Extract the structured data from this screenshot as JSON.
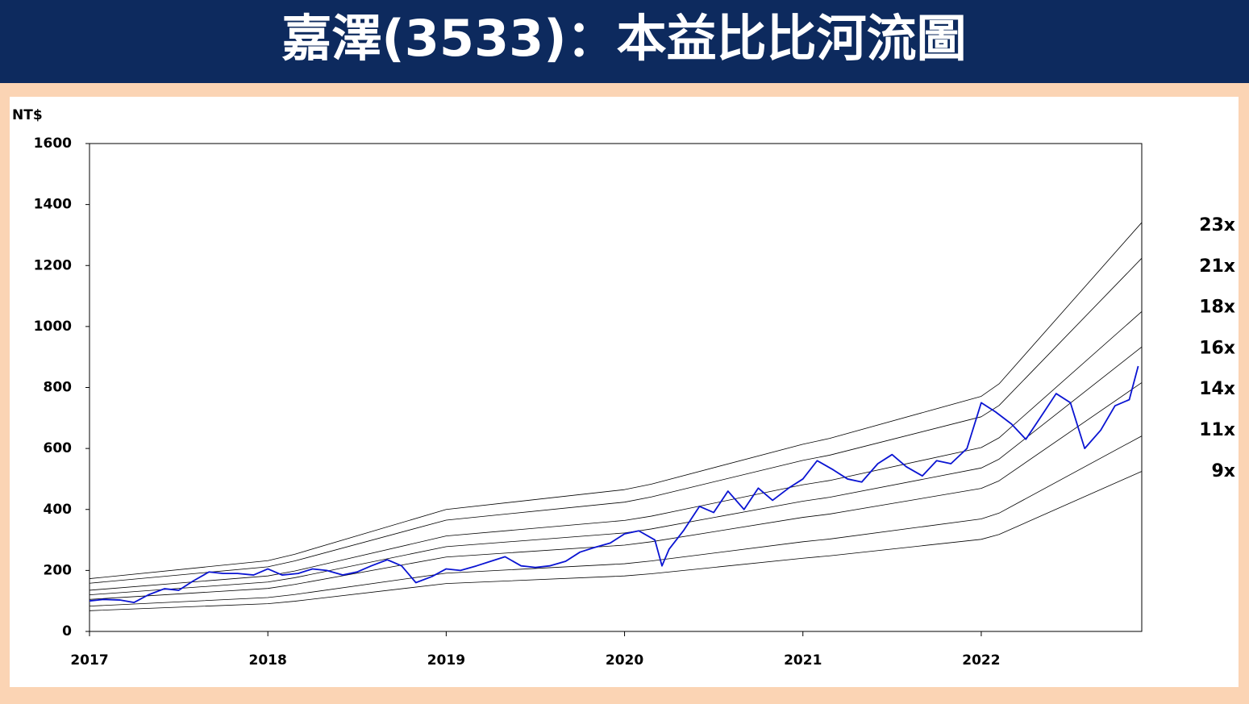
{
  "chart_data": {
    "type": "line",
    "title": "嘉澤(3533)：本益比比河流圖",
    "y_label": "NT$",
    "xlim": [
      2017,
      2022.9
    ],
    "xticks": [
      2017,
      2018,
      2019,
      2020,
      2021,
      2022
    ],
    "ylim": [
      0,
      1600
    ],
    "yticks": [
      0,
      200,
      400,
      600,
      800,
      1000,
      1200,
      1400,
      1600
    ],
    "series": [
      {
        "name": "23x",
        "color": "#000000",
        "x": [
          2017,
          2018,
          2018.15,
          2019,
          2020,
          2020.15,
          2021,
          2021.15,
          2022,
          2022.1,
          2022.9
        ],
        "values": [
          173,
          232,
          253,
          400,
          465,
          483,
          614,
          633,
          771,
          812,
          1341
        ]
      },
      {
        "name": "21x",
        "color": "#000000",
        "x": [
          2017,
          2018,
          2018.15,
          2019,
          2020,
          2020.15,
          2021,
          2021.15,
          2022,
          2022.1,
          2022.9
        ],
        "values": [
          158,
          212,
          231,
          365,
          424,
          441,
          561,
          578,
          704,
          741,
          1224
        ]
      },
      {
        "name": "18x",
        "color": "#000000",
        "x": [
          2017,
          2018,
          2018.15,
          2019,
          2020,
          2020.15,
          2021,
          2021.15,
          2022,
          2022.1,
          2022.9
        ],
        "values": [
          135,
          182,
          198,
          313,
          364,
          378,
          481,
          495,
          603,
          635,
          1049
        ]
      },
      {
        "name": "16x",
        "color": "#000000",
        "x": [
          2017,
          2018,
          2018.15,
          2019,
          2020,
          2020.15,
          2021,
          2021.15,
          2022,
          2022.1,
          2022.9
        ],
        "values": [
          120,
          162,
          176,
          278,
          323,
          336,
          427,
          440,
          536,
          565,
          933
        ]
      },
      {
        "name": "14x",
        "color": "#000000",
        "x": [
          2017,
          2018,
          2018.15,
          2019,
          2020,
          2020.15,
          2021,
          2021.15,
          2022,
          2022.1,
          2022.9
        ],
        "values": [
          105,
          141,
          154,
          244,
          283,
          294,
          374,
          385,
          469,
          494,
          816
        ]
      },
      {
        "name": "11x",
        "color": "#000000",
        "x": [
          2017,
          2018,
          2018.15,
          2019,
          2020,
          2020.15,
          2021,
          2021.15,
          2022,
          2022.1,
          2022.9
        ],
        "values": [
          83,
          111,
          121,
          191,
          222,
          231,
          294,
          303,
          369,
          388,
          641
        ]
      },
      {
        "name": "9x",
        "color": "#000000",
        "x": [
          2017,
          2018,
          2018.15,
          2019,
          2020,
          2020.15,
          2021,
          2021.15,
          2022,
          2022.1,
          2022.9
        ],
        "values": [
          68,
          91,
          99,
          157,
          182,
          189,
          240,
          248,
          302,
          318,
          525
        ]
      },
      {
        "color": "#0a14d2",
        "x": [
          2017,
          2017.08,
          2017.17,
          2017.25,
          2017.33,
          2017.42,
          2017.5,
          2017.58,
          2017.67,
          2017.75,
          2017.83,
          2017.92,
          2018,
          2018.08,
          2018.17,
          2018.25,
          2018.33,
          2018.42,
          2018.5,
          2018.58,
          2018.67,
          2018.75,
          2018.83,
          2018.92,
          2019,
          2019.08,
          2019.17,
          2019.25,
          2019.33,
          2019.42,
          2019.5,
          2019.58,
          2019.67,
          2019.75,
          2019.83,
          2019.92,
          2020,
          2020.08,
          2020.17,
          2020.21,
          2020.25,
          2020.33,
          2020.42,
          2020.5,
          2020.58,
          2020.67,
          2020.75,
          2020.83,
          2020.92,
          2021,
          2021.08,
          2021.17,
          2021.25,
          2021.33,
          2021.42,
          2021.5,
          2021.58,
          2021.67,
          2021.75,
          2021.83,
          2021.92,
          2022,
          2022.08,
          2022.17,
          2022.25,
          2022.33,
          2022.42,
          2022.5,
          2022.58,
          2022.67,
          2022.75,
          2022.83,
          2022.88
        ],
        "values": [
          100,
          105,
          103,
          95,
          120,
          140,
          135,
          165,
          195,
          190,
          190,
          185,
          205,
          185,
          190,
          205,
          200,
          185,
          195,
          215,
          235,
          215,
          160,
          180,
          205,
          200,
          215,
          230,
          245,
          215,
          210,
          215,
          230,
          260,
          275,
          290,
          320,
          330,
          300,
          215,
          270,
          330,
          410,
          390,
          460,
          400,
          470,
          430,
          470,
          500,
          560,
          530,
          500,
          490,
          550,
          580,
          540,
          510,
          560,
          550,
          600,
          750,
          720,
          680,
          630,
          700,
          780,
          750,
          600,
          660,
          740,
          760,
          870
        ]
      }
    ]
  }
}
